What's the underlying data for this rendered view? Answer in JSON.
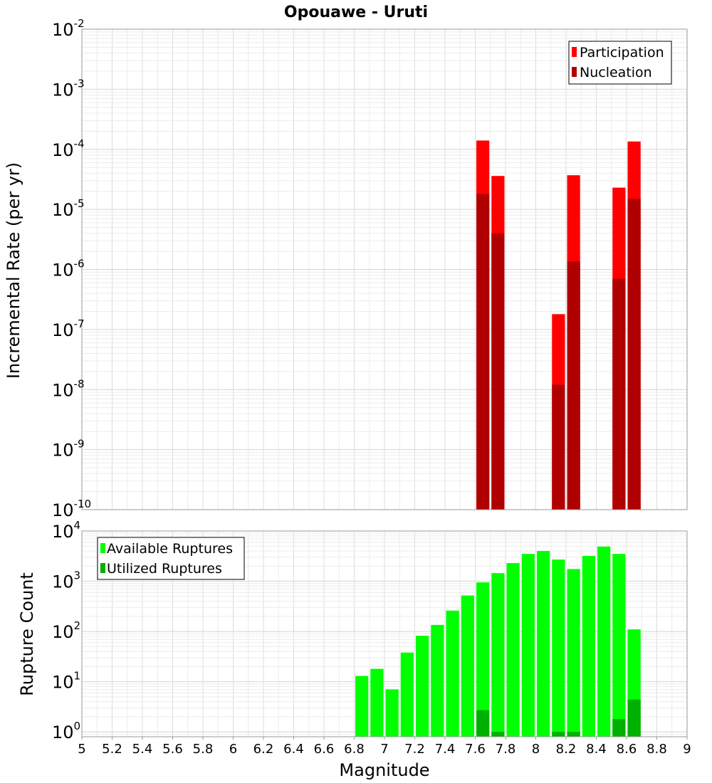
{
  "chart_data": [
    {
      "type": "bar",
      "title": "Opouawe - Uruti",
      "xlabel": "",
      "ylabel": "Incremental Rate (per yr)",
      "yscale": "log",
      "ylim": [
        1e-10,
        0.01
      ],
      "xlim": [
        5,
        9
      ],
      "bar_width": 0.1,
      "legend_position": "top-right",
      "series": [
        {
          "name": "Participation",
          "color": "#ff0000",
          "x": [
            7.65,
            7.75,
            8.15,
            8.25,
            8.55,
            8.65
          ],
          "values": [
            0.00014,
            3.6e-05,
            1.8e-07,
            3.7e-05,
            2.3e-05,
            0.000135
          ]
        },
        {
          "name": "Nucleation",
          "color": "#b00000",
          "x": [
            7.65,
            7.75,
            8.15,
            8.25,
            8.55,
            8.65
          ],
          "values": [
            1.8e-05,
            4e-06,
            1.2e-08,
            1.35e-06,
            7e-07,
            1.5e-05
          ]
        }
      ],
      "y_ticks": [
        {
          "base": "10",
          "exp": "-10"
        },
        {
          "base": "10",
          "exp": "-9"
        },
        {
          "base": "10",
          "exp": "-8"
        },
        {
          "base": "10",
          "exp": "-7"
        },
        {
          "base": "10",
          "exp": "-6"
        },
        {
          "base": "10",
          "exp": "-5"
        },
        {
          "base": "10",
          "exp": "-4"
        },
        {
          "base": "10",
          "exp": "-3"
        },
        {
          "base": "10",
          "exp": "-2"
        }
      ]
    },
    {
      "type": "bar",
      "xlabel": "Magnitude",
      "ylabel": "Rupture Count",
      "yscale": "log",
      "ylim": [
        0.8,
        10000
      ],
      "xlim": [
        5,
        9
      ],
      "bar_width": 0.1,
      "legend_position": "top-left",
      "series": [
        {
          "name": "Available Ruptures",
          "color": "#00ff00",
          "x": [
            6.85,
            6.95,
            7.05,
            7.15,
            7.25,
            7.35,
            7.45,
            7.55,
            7.65,
            7.75,
            7.85,
            7.95,
            8.05,
            8.15,
            8.25,
            8.35,
            8.45,
            8.55,
            8.65
          ],
          "values": [
            13,
            18,
            7,
            38,
            82,
            135,
            260,
            520,
            950,
            1450,
            2300,
            3500,
            4000,
            2700,
            1750,
            3200,
            4900,
            3500,
            110
          ]
        },
        {
          "name": "Utilized Ruptures",
          "color": "#00b000",
          "x": [
            7.65,
            7.75,
            8.15,
            8.25,
            8.55,
            8.65
          ],
          "values": [
            2.7,
            1,
            1,
            1,
            1.8,
            4.4
          ]
        }
      ],
      "y_ticks": [
        {
          "base": "10",
          "exp": "0"
        },
        {
          "base": "10",
          "exp": "1"
        },
        {
          "base": "10",
          "exp": "2"
        },
        {
          "base": "10",
          "exp": "3"
        },
        {
          "base": "10",
          "exp": "4"
        }
      ],
      "x_ticks": [
        "5",
        "5.2",
        "5.4",
        "5.6",
        "5.8",
        "6",
        "6.2",
        "6.4",
        "6.6",
        "6.8",
        "7",
        "7.2",
        "7.4",
        "7.6",
        "7.8",
        "8",
        "8.2",
        "8.4",
        "8.6",
        "8.8",
        "9"
      ]
    }
  ]
}
